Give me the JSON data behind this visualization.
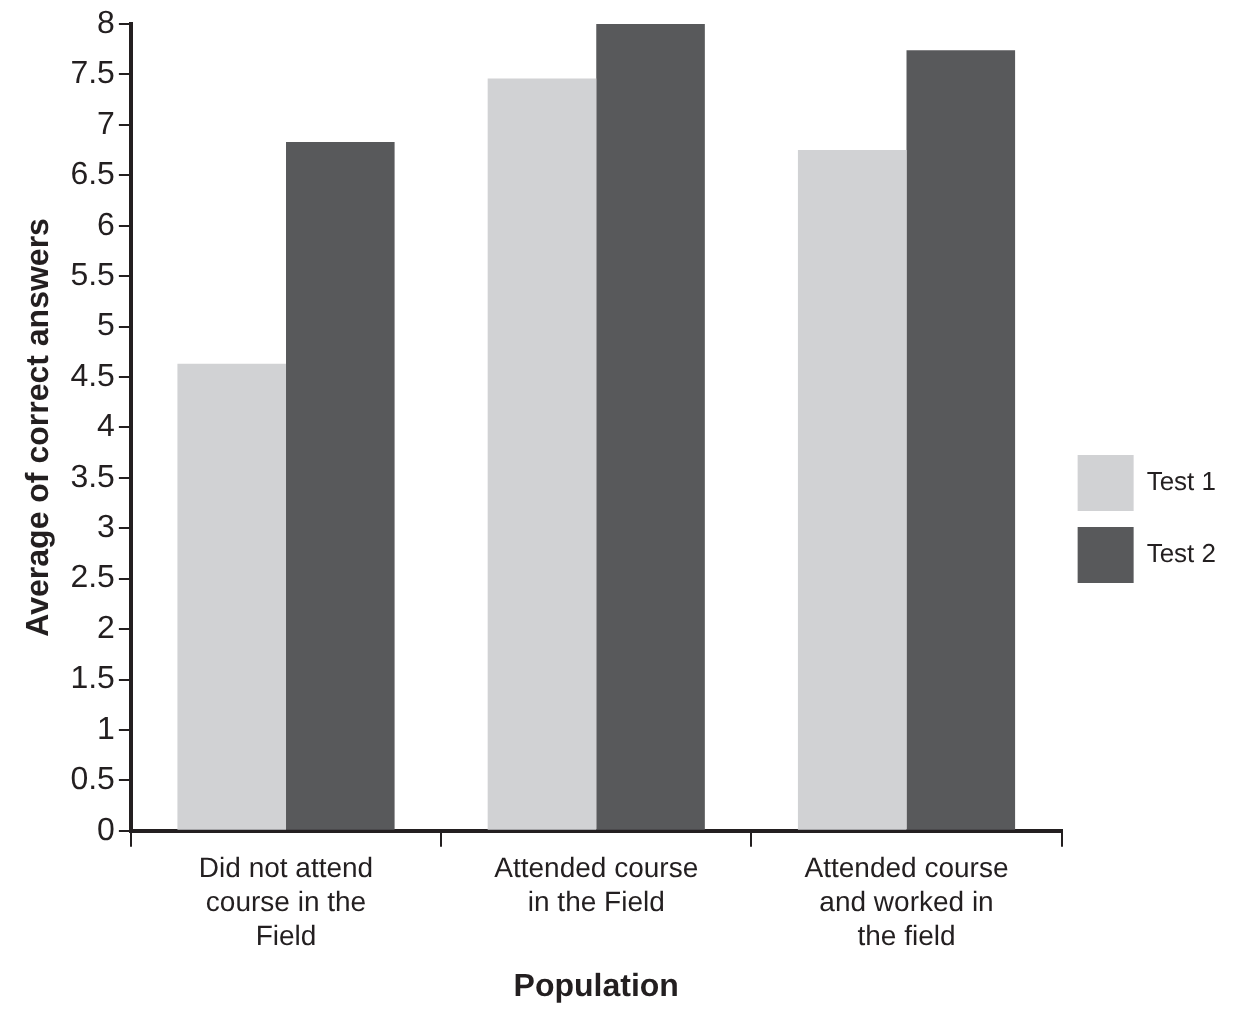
{
  "chart_data": {
    "type": "bar",
    "xlabel": "Population",
    "ylabel": "Average of correct answers",
    "categories": [
      "Did not attend course in the Field",
      "Attended course in the Field",
      "Attended course and worked in the field"
    ],
    "series": [
      {
        "name": "Test 1",
        "color": "#d1d2d4",
        "values": [
          4.63,
          7.46,
          6.75
        ]
      },
      {
        "name": "Test 2",
        "color": "#58595b",
        "values": [
          6.83,
          8.0,
          7.74
        ]
      }
    ],
    "ylim": [
      0,
      8
    ],
    "yticks": [
      0,
      0.5,
      1,
      1.5,
      2,
      2.5,
      3,
      3.5,
      4,
      4.5,
      5,
      5.5,
      6,
      6.5,
      7,
      7.5,
      8
    ],
    "grid": false,
    "legend": "right"
  }
}
